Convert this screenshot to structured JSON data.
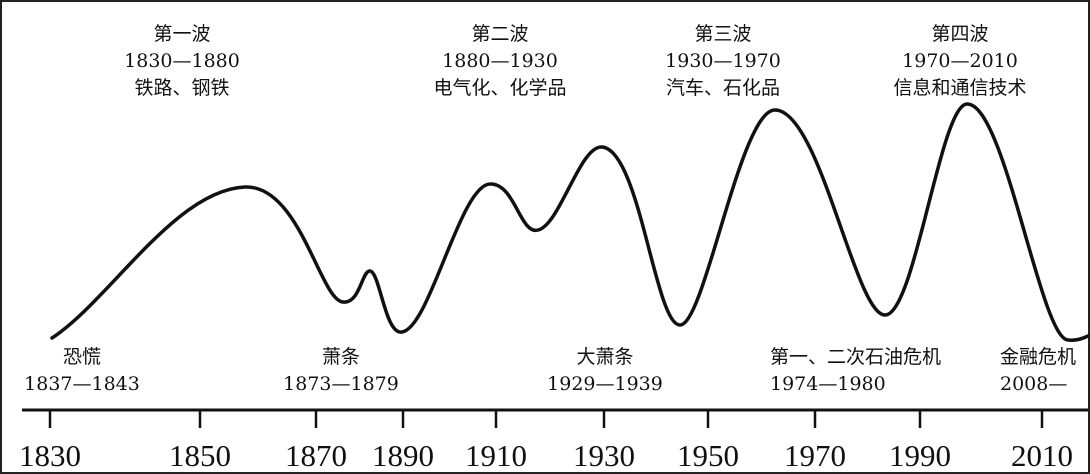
{
  "waves": [
    {
      "title": "第一波",
      "years": "1830—1880",
      "industries": "铁路、钢铁"
    },
    {
      "title": "第二波",
      "years": "1880—1930",
      "industries": "电气化、化学品"
    },
    {
      "title": "第三波",
      "years": "1930—1970",
      "industries": "汽车、石化品"
    },
    {
      "title": "第四波",
      "years": "1970—2010",
      "industries": "信息和通信技术"
    }
  ],
  "crises": [
    {
      "name": "恐慌",
      "years": "1837—1843"
    },
    {
      "name": "萧条",
      "years": "1873—1879"
    },
    {
      "name": "大萧条",
      "years": "1929—1939"
    },
    {
      "name": "第一、二次石油危机",
      "years": "1974—1980"
    },
    {
      "name": "金融危机",
      "years": "2008—"
    }
  ],
  "axis_ticks": [
    "1830",
    "1850",
    "1870",
    "1890",
    "1910",
    "1930",
    "1950",
    "1970",
    "1990",
    "2010"
  ],
  "colors": {
    "line": "#111111",
    "text": "#111111",
    "frame": "#222222"
  }
}
